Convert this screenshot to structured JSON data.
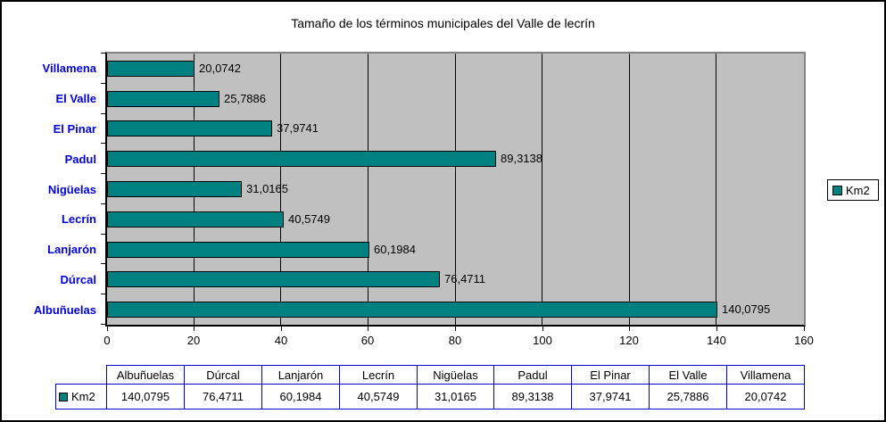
{
  "title": "Tamaño de los términos municipales del Valle de lecrín",
  "legend": {
    "label": "Km2"
  },
  "colors": {
    "bar_fill": "#008080",
    "plot_background": "#C0C0C0",
    "plot_border": "#848284",
    "axis": "#000000",
    "category_label": "#0000DD",
    "table_border": "#0000CC",
    "text": "#000000"
  },
  "chart_data": {
    "type": "bar",
    "orientation": "horizontal",
    "title": "Tamaño de los términos municipales del Valle de lecrín",
    "series_name": "Km2",
    "categories": [
      "Villamena",
      "El Valle",
      "El Pinar",
      "Padul",
      "Nigüelas",
      "Lecrín",
      "Lanjarón",
      "Dúrcal",
      "Albuñuelas"
    ],
    "values": [
      20.0742,
      25.7886,
      37.9741,
      89.3138,
      31.0165,
      40.5749,
      60.1984,
      76.4711,
      140.0795
    ],
    "value_labels": [
      "20,0742",
      "25,7886",
      "37,9741",
      "89,3138",
      "31,0165",
      "40,5749",
      "60,1984",
      "76,4711",
      "140,0795"
    ],
    "xlabel": "",
    "ylabel": "",
    "xlim": [
      0,
      160
    ],
    "x_ticks": [
      0,
      20,
      40,
      60,
      80,
      100,
      120,
      140,
      160
    ],
    "x_tick_labels": [
      "0",
      "20",
      "40",
      "60",
      "80",
      "100",
      "120",
      "140",
      "160"
    ],
    "grid": true,
    "legend_position": "right"
  },
  "table": {
    "row_label": "Km2",
    "headers": [
      "Albuñuelas",
      "Dúrcal",
      "Lanjarón",
      "Lecrín",
      "Nigüelas",
      "Padul",
      "El Pinar",
      "El Valle",
      "Villamena"
    ],
    "values": [
      "140,0795",
      "76,4711",
      "60,1984",
      "40,5749",
      "31,0165",
      "89,3138",
      "37,9741",
      "25,7886",
      "20,0742"
    ]
  }
}
